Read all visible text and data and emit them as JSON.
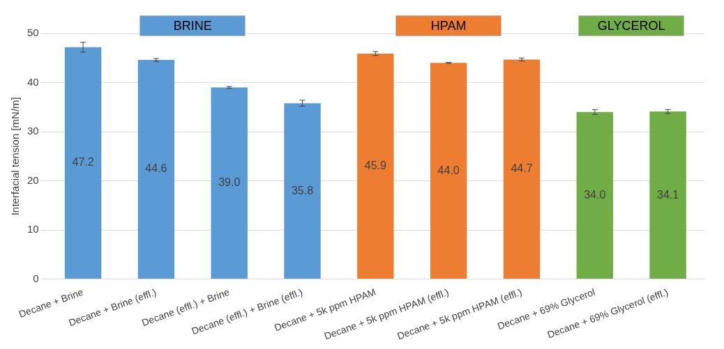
{
  "chart_data": {
    "type": "bar",
    "ylabel": "Interfacial tension [mN/m]",
    "categories": [
      "Decane + Brine",
      "Decane + Brine (effl.)",
      "Decane (effl.) + Brine",
      "Decane (effl.) + Brine (effl.)",
      "Decane + 5k ppm HPAM",
      "Decane + 5k ppm HPAM (effl.)",
      "Decane + 5k ppm HPAM (effl.)",
      "Decane + 69% Glycerol",
      "Decane + 69% Glycerol (effl.)"
    ],
    "series": [
      {
        "name": "BRINE",
        "color": "#5b9bd5",
        "values": [
          47.2,
          44.6,
          39.0,
          35.8,
          null,
          null,
          null,
          null,
          null
        ],
        "errors": [
          1.0,
          0.3,
          0.2,
          0.6,
          null,
          null,
          null,
          null,
          null
        ],
        "value_labels": [
          "47.2",
          "44.6",
          "39.0",
          "35.8",
          null,
          null,
          null,
          null,
          null
        ]
      },
      {
        "name": "HPAM",
        "color": "#ed7d31",
        "values": [
          null,
          null,
          null,
          null,
          45.9,
          44.0,
          44.7,
          null,
          null
        ],
        "errors": [
          null,
          null,
          null,
          null,
          0.4,
          0.1,
          0.3,
          null,
          null
        ],
        "value_labels": [
          null,
          null,
          null,
          null,
          "45.9",
          "44.0",
          "44.7",
          null,
          null
        ]
      },
      {
        "name": "GLYCEROL",
        "color": "#70ad47",
        "values": [
          null,
          null,
          null,
          null,
          null,
          null,
          null,
          34.0,
          34.1
        ],
        "errors": [
          null,
          null,
          null,
          null,
          null,
          null,
          null,
          0.5,
          0.4
        ],
        "value_labels": [
          null,
          null,
          null,
          null,
          null,
          null,
          null,
          "34.0",
          "34.1"
        ]
      }
    ],
    "ylim": [
      0,
      50
    ],
    "yticks": [
      0,
      10,
      20,
      30,
      40,
      50
    ],
    "grid": "y",
    "legend": "top"
  }
}
